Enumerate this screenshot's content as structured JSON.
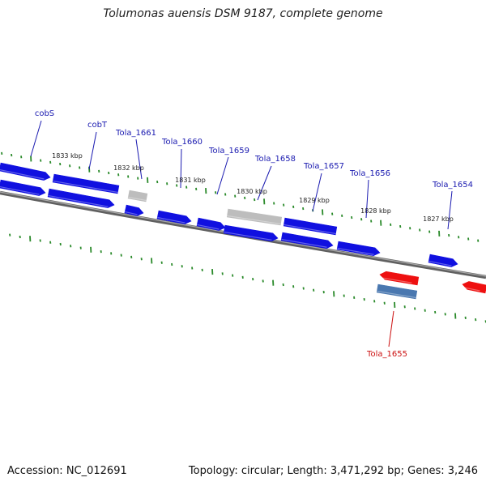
{
  "title": "Tolumonas auensis DSM 9187, complete genome",
  "accession": "Accession: NC_012691",
  "summary": "Topology: circular; Length: 3,471,292 bp; Genes: 3,246",
  "colors": {
    "forward_gene": "#1010e0",
    "reverse_gene": "#ee1010",
    "pseudo_gene": "#bdbdbd",
    "rna_gene": "#4a78b0",
    "backbone": "#808080",
    "tick": "#2a8a2a",
    "label_blue": "#1a1ab0",
    "label_red": "#cc1010"
  },
  "ticks": [
    {
      "label": "1833 kbp"
    },
    {
      "label": "1832 kbp"
    },
    {
      "label": "1831 kbp"
    },
    {
      "label": "1830 kbp"
    },
    {
      "label": "1829 kbp"
    },
    {
      "label": "1828 kbp"
    },
    {
      "label": "1827 kbp"
    }
  ],
  "genes": [
    {
      "name": "cobS"
    },
    {
      "name": "cobT"
    },
    {
      "name": "Tola_1661"
    },
    {
      "name": "Tola_1660"
    },
    {
      "name": "Tola_1659"
    },
    {
      "name": "Tola_1658"
    },
    {
      "name": "Tola_1657"
    },
    {
      "name": "Tola_1656"
    },
    {
      "name": "Tola_1654"
    },
    {
      "name": "Tola_1655"
    }
  ]
}
